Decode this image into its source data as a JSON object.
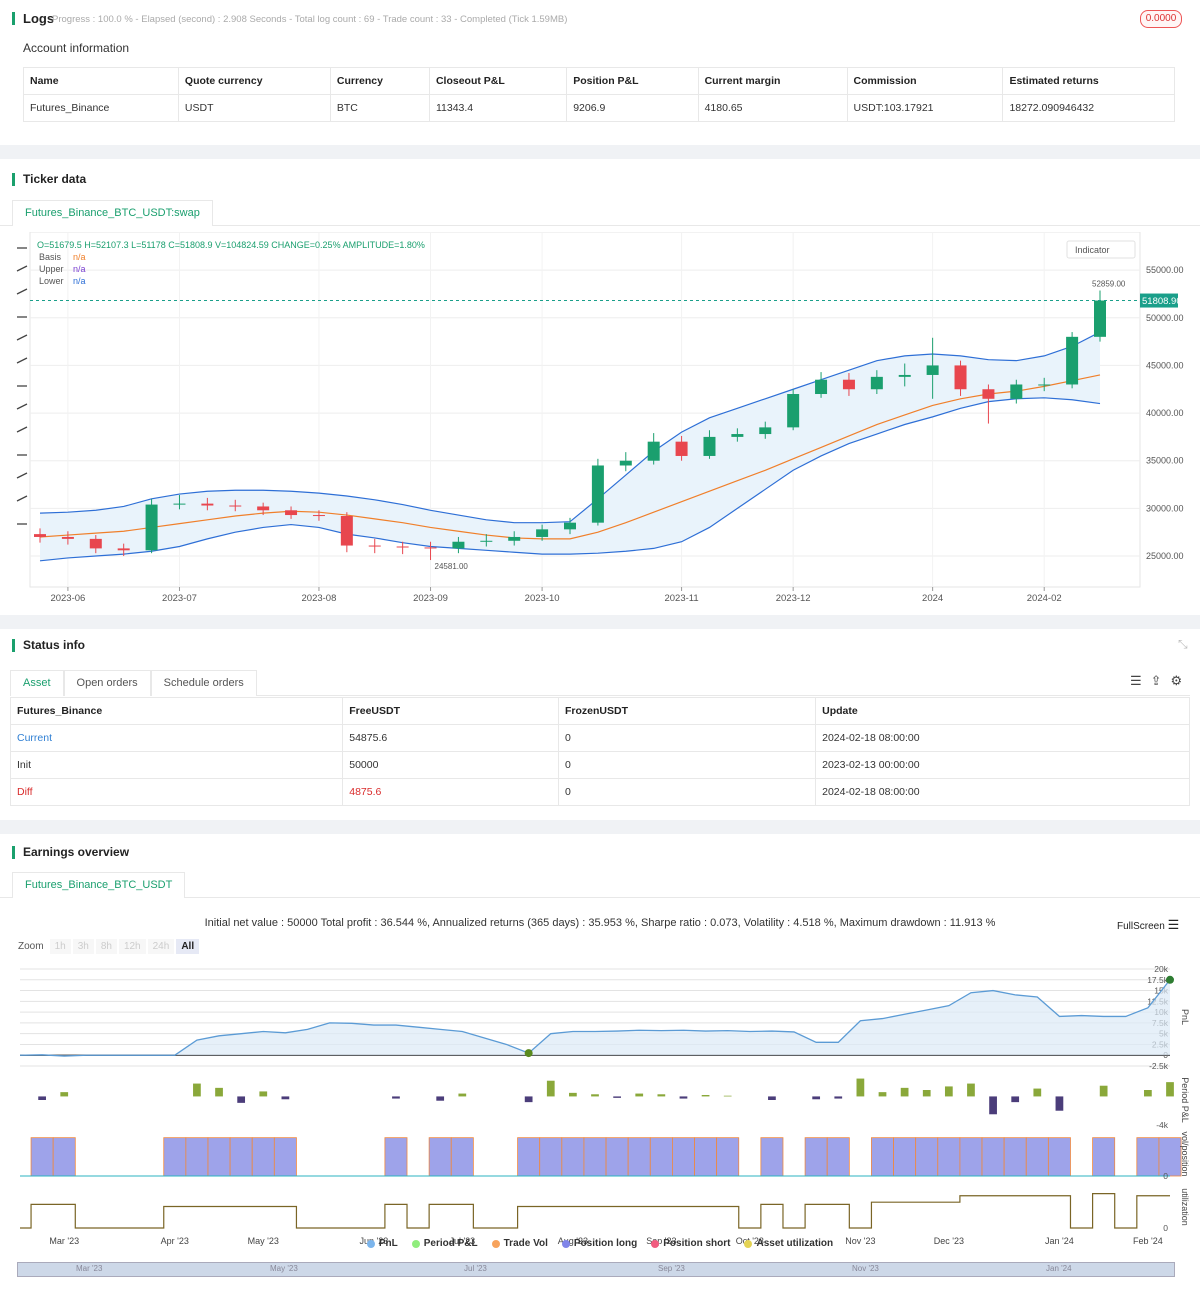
{
  "logs": {
    "title": "Logs",
    "status": "Progress : 100.0 % - Elapsed (second) : 2.908  Seconds - Total log count : 69 - Trade count : 33 - Completed (Tick 1.59MB)",
    "badge": "0.0000"
  },
  "account": {
    "title": "Account information",
    "headers": [
      "Name",
      "Quote currency",
      "Currency",
      "Closeout P&L",
      "Position P&L",
      "Current margin",
      "Commission",
      "Estimated returns"
    ],
    "rows": [
      [
        "Futures_Binance",
        "USDT",
        "BTC",
        11343.4,
        9206.9,
        4180.65,
        "USDT:103.17921",
        18272.090946432
      ]
    ]
  },
  "ticker": {
    "title": "Ticker data",
    "tab": "Futures_Binance_BTC_USDT:swap",
    "ohlc": "O=51679.5 H=52107.3 L=51178 C=51808.9 V=104824.59 CHANGE=0.25% AMPLITUDE=1.80%",
    "indicator_button": "Indicator",
    "legend": [
      {
        "name": "Basis",
        "value": "n/a"
      },
      {
        "name": "Upper",
        "value": "n/a"
      },
      {
        "name": "Lower",
        "value": "n/a"
      }
    ],
    "chart_data": {
      "type": "candlestick",
      "categories": [
        null,
        "2023-06",
        null,
        null,
        null,
        "2023-07",
        null,
        null,
        null,
        null,
        "2023-08",
        null,
        null,
        null,
        "2023-09",
        null,
        null,
        null,
        "2023-10",
        null,
        null,
        null,
        null,
        "2023-11",
        null,
        null,
        null,
        "2023-12",
        null,
        null,
        null,
        null,
        "2024",
        null,
        null,
        null,
        "2024-02",
        null,
        null
      ],
      "open": [
        27300,
        27000,
        26800,
        25800,
        25600,
        30400,
        30500,
        30300,
        30200,
        29800,
        29300,
        29200,
        26100,
        26000,
        25900,
        25800,
        26500,
        26600,
        27000,
        27800,
        28500,
        34500,
        35000,
        37000,
        35500,
        37500,
        37800,
        38500,
        42000,
        43500,
        42500,
        43800,
        44000,
        45000,
        42500,
        41500,
        43000,
        43000,
        48000
      ],
      "high": [
        27900,
        27600,
        27200,
        26300,
        31000,
        31400,
        31100,
        30900,
        30600,
        30200,
        29800,
        29600,
        26800,
        26500,
        26500,
        27000,
        27300,
        27600,
        28300,
        29000,
        35200,
        35900,
        37900,
        37600,
        38200,
        38400,
        39100,
        42500,
        44300,
        44200,
        44500,
        45200,
        47900,
        45500,
        43000,
        43500,
        43700,
        48500,
        52859
      ],
      "low": [
        26400,
        26200,
        25300,
        25000,
        25300,
        29900,
        29800,
        29700,
        29300,
        28900,
        28700,
        25400,
        25300,
        25200,
        24581,
        25300,
        26000,
        26100,
        26600,
        27300,
        28200,
        33900,
        34600,
        35000,
        35200,
        37000,
        37300,
        38200,
        41600,
        41800,
        42000,
        42800,
        41500,
        41800,
        38900,
        41000,
        42300,
        42600,
        47500
      ],
      "close": [
        27000,
        26800,
        25800,
        25600,
        30400,
        30500,
        30300,
        30200,
        29800,
        29300,
        29200,
        26100,
        26000,
        25900,
        25800,
        26500,
        26600,
        27000,
        27800,
        28500,
        34500,
        35000,
        37000,
        35500,
        37500,
        37800,
        38500,
        42000,
        43500,
        42500,
        43800,
        44000,
        45000,
        42500,
        41500,
        43000,
        43000,
        48000,
        51808.9
      ],
      "colors": {
        "up": "#1a9f6e",
        "down": "#e8464e"
      },
      "series": [
        {
          "name": "Basis",
          "color": "#f07f2a",
          "values": [
            27000,
            27200,
            27400,
            27600,
            28000,
            28400,
            28800,
            29200,
            29500,
            29700,
            29600,
            29300,
            28900,
            28500,
            28000,
            27600,
            27200,
            26900,
            26800,
            26800,
            27500,
            28500,
            29600,
            30700,
            31800,
            32900,
            34000,
            35200,
            36400,
            37600,
            38800,
            39800,
            40800,
            41500,
            42000,
            42300,
            42800,
            43400,
            44000
          ]
        },
        {
          "name": "Upper",
          "color": "#2e6fd6",
          "values": [
            29500,
            29600,
            29800,
            30200,
            31000,
            31500,
            31800,
            31900,
            31900,
            31800,
            31600,
            31300,
            30900,
            30400,
            29800,
            29300,
            28800,
            28500,
            28500,
            28600,
            31000,
            33500,
            36000,
            38000,
            39500,
            40500,
            41500,
            42500,
            43500,
            44500,
            45500,
            46000,
            46200,
            46000,
            45600,
            45500,
            46000,
            47000,
            48500
          ]
        },
        {
          "name": "Lower",
          "color": "#2e6fd6",
          "values": [
            24500,
            24800,
            25000,
            25200,
            25500,
            26000,
            26800,
            27500,
            28000,
            28300,
            28000,
            27300,
            26900,
            26400,
            26000,
            25800,
            25600,
            25400,
            25200,
            25200,
            25300,
            25500,
            25800,
            26500,
            28000,
            30000,
            32000,
            34000,
            35500,
            36800,
            37800,
            38800,
            39600,
            40500,
            41200,
            41500,
            41600,
            41400,
            41000
          ]
        }
      ],
      "band_fill": "#e9f3fb",
      "ylim": [
        21750,
        59000
      ],
      "yticks": [
        {
          "value": 25000,
          "label": "25000.00"
        },
        {
          "value": 30000,
          "label": "30000.00"
        },
        {
          "value": 35000,
          "label": "35000.00"
        },
        {
          "value": 40000,
          "label": "40000.00"
        },
        {
          "value": 45000,
          "label": "45000.00"
        },
        {
          "value": 50000,
          "label": "50000.00"
        },
        {
          "value": 55000,
          "label": "55000.00"
        }
      ],
      "grid": true,
      "last_price": {
        "value": 51808.9,
        "label": "51808.90"
      },
      "high_label": {
        "value": 52859,
        "label": "52859.00"
      },
      "low_label": {
        "value": 24581,
        "label": "24581.00"
      }
    }
  },
  "status": {
    "title": "Status info",
    "tabs": [
      "Asset",
      "Open orders",
      "Schedule orders"
    ],
    "headers": [
      "Futures_Binance",
      "FreeUSDT",
      "FrozenUSDT",
      "Update"
    ],
    "rows": [
      [
        "Current",
        54875.6,
        0,
        "2024-02-18 08:00:00"
      ],
      [
        "Init",
        50000,
        0,
        "2023-02-13 00:00:00"
      ],
      [
        "Diff",
        4875.6,
        0,
        "2024-02-18 08:00:00"
      ]
    ]
  },
  "earnings": {
    "title": "Earnings overview",
    "tab": "Futures_Binance_BTC_USDT",
    "summary": "Initial net value : 50000 Total profit : 36.544 %, Annualized returns (365 days) : 35.953 %, Sharpe ratio : 0.073, Volatility : 4.518 %, Maximum drawdown : 11.913 %",
    "zoom_label": "Zoom",
    "zoom_buttons": [
      "1h",
      "3h",
      "8h",
      "12h",
      "24h",
      "All"
    ],
    "fullscreen": "FullScreen",
    "legend": [
      {
        "name": "PnL",
        "color": "#7cb5ec"
      },
      {
        "name": "Period P&L",
        "color": "#90ed7d"
      },
      {
        "name": "Trade Vol",
        "color": "#f7a35c"
      },
      {
        "name": "Position long",
        "color": "#8085e9"
      },
      {
        "name": "Position short",
        "color": "#f15c80"
      },
      {
        "name": "Asset utilization",
        "color": "#e4d354"
      }
    ],
    "panel_labels": [
      "PnL",
      "Period P&L",
      "vol/position",
      "utilization"
    ],
    "chart_data": {
      "type": "line",
      "categories": [
        null,
        null,
        "Mar '23",
        null,
        null,
        null,
        null,
        "Apr '23",
        null,
        null,
        null,
        "May '23",
        null,
        null,
        null,
        null,
        "Jun '23",
        null,
        null,
        null,
        "Jul '23",
        null,
        null,
        null,
        null,
        "Aug '23",
        null,
        null,
        null,
        "Sep '23",
        null,
        null,
        null,
        "Oct '23",
        null,
        null,
        null,
        null,
        "Nov '23",
        null,
        null,
        null,
        "Dec '23",
        null,
        null,
        null,
        null,
        "Jan '24",
        null,
        null,
        null,
        "Feb '24",
        null
      ],
      "pnl": {
        "color": "#5b9bd5",
        "values": [
          0,
          100,
          -200,
          0,
          0,
          0,
          0,
          0,
          3500,
          4500,
          5000,
          5500,
          5200,
          6000,
          7500,
          7400,
          7000,
          7000,
          6500,
          6000,
          5500,
          4000,
          2500,
          500,
          5000,
          5500,
          5500,
          5600,
          5800,
          5700,
          5800,
          5600,
          5700,
          5500,
          5600,
          5400,
          3000,
          3000,
          8000,
          8500,
          9500,
          10500,
          11500,
          14500,
          15000,
          14000,
          13500,
          9000,
          9200,
          9000,
          9000,
          11000,
          17500
        ],
        "ylim": [
          -2500,
          20000
        ],
        "yticks": [
          {
            "value": 20000,
            "label": "20k"
          },
          {
            "value": 17500,
            "label": "17.5k"
          },
          {
            "value": 15000,
            "label": "15k"
          },
          {
            "value": 12500,
            "label": "12.5k"
          },
          {
            "value": 10000,
            "label": "10k"
          },
          {
            "value": 7500,
            "label": "7.5k"
          },
          {
            "value": 5000,
            "label": "5k"
          },
          {
            "value": 2500,
            "label": "2.5k"
          },
          0,
          {
            "value": -2500,
            "label": "-2.5k"
          }
        ]
      },
      "period_pnl": {
        "up": "#8aa83a",
        "down": "#4b3d7a",
        "values": [
          0,
          -500,
          600,
          0,
          0,
          0,
          0,
          0,
          1800,
          1200,
          -900,
          700,
          -400,
          0,
          0,
          0,
          0,
          -300,
          0,
          -600,
          400,
          0,
          0,
          -800,
          2200,
          500,
          300,
          -200,
          400,
          300,
          -300,
          200,
          100,
          0,
          -500,
          0,
          -400,
          -300,
          2500,
          600,
          1200,
          900,
          1400,
          1800,
          -2500,
          -800,
          1100,
          -2000,
          0,
          1500,
          0,
          900,
          2000
        ],
        "ylim": [
          -4000,
          3000
        ],
        "yticks": [
          {
            "value": -4000,
            "label": "-4k"
          }
        ]
      },
      "position": {
        "color": "#9ea3ea",
        "edge": "#f0883e",
        "values": [
          0,
          1,
          1,
          0,
          0,
          0,
          0,
          1,
          1,
          1,
          1,
          1,
          1,
          0,
          0,
          0,
          0,
          1,
          0,
          1,
          1,
          0,
          0,
          1,
          1,
          1,
          1,
          1,
          1,
          1,
          1,
          1,
          1,
          0,
          1,
          0,
          1,
          1,
          0,
          1,
          1,
          1,
          1,
          1,
          1,
          1,
          1,
          1,
          0,
          1,
          0,
          1,
          1
        ],
        "ylim": [
          0,
          1.2
        ],
        "yticks": [
          0
        ]
      },
      "utilization": {
        "color": "#7a6526",
        "values": [
          0,
          0.55,
          0.55,
          0,
          0,
          0,
          0,
          0.5,
          0.5,
          0.5,
          0.5,
          0.5,
          0.5,
          0,
          0,
          0,
          0,
          0.55,
          0,
          0.55,
          0.55,
          0,
          0,
          0.5,
          0.5,
          0.5,
          0.5,
          0.5,
          0.5,
          0.5,
          0.5,
          0.5,
          0.5,
          0,
          0.55,
          0,
          0.55,
          0.55,
          0,
          0.6,
          0.6,
          0.6,
          0.6,
          0.75,
          0.75,
          0.75,
          0.75,
          0.75,
          0,
          0.8,
          0,
          0.75,
          0.75
        ],
        "ylim": [
          0,
          1
        ],
        "yticks": [
          0
        ]
      }
    },
    "navigator": [
      "Mar '23",
      "May '23",
      "Jul '23",
      "Sep '23",
      "Nov '23",
      "Jan '24"
    ]
  }
}
